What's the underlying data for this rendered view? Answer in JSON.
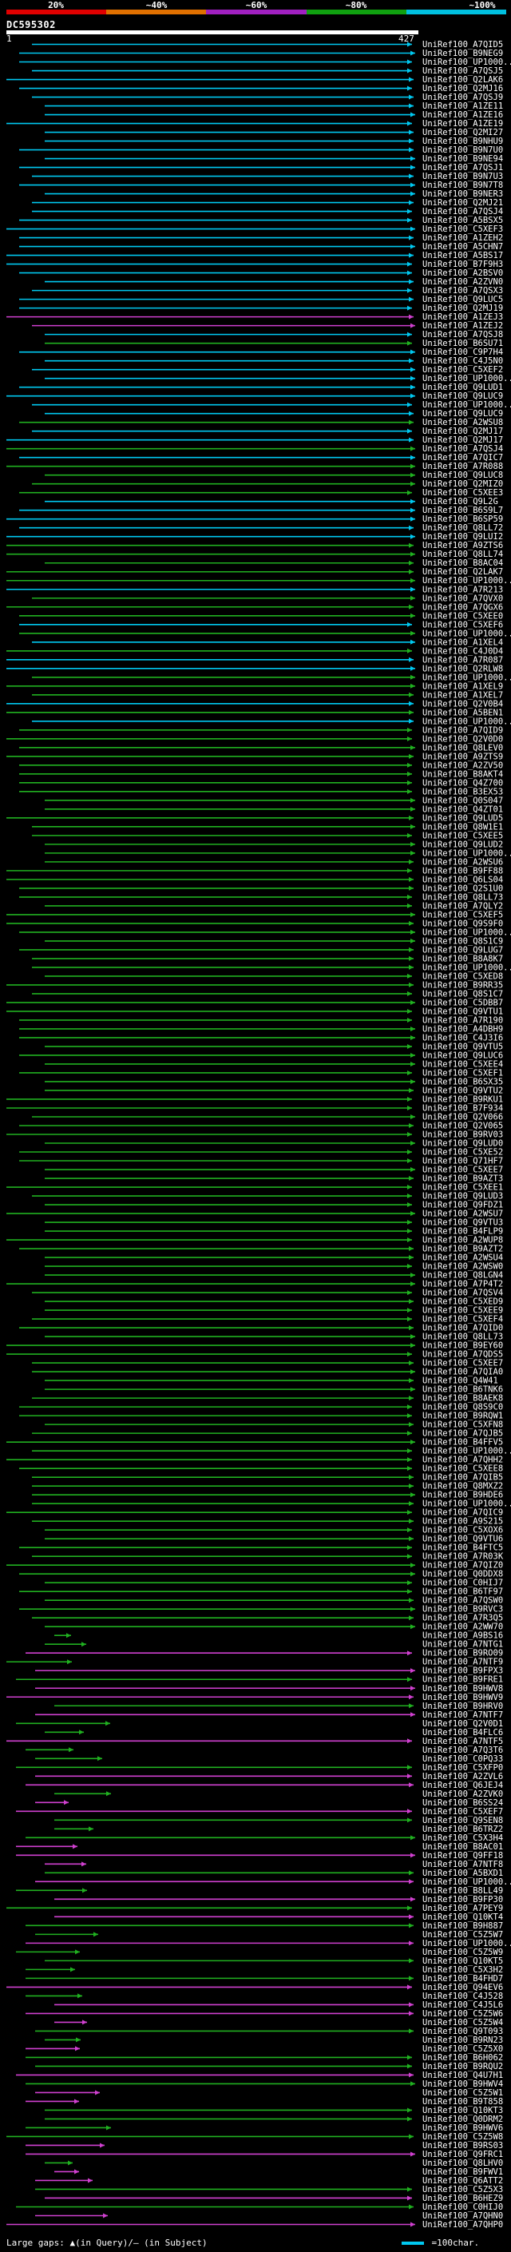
{
  "query": {
    "id": "DC595302",
    "start": "1",
    "end": "427"
  },
  "legend": {
    "ticks": [
      "20%",
      "~40%",
      "~60%",
      "~80%",
      "~100%"
    ],
    "colors": [
      "#e00000",
      "#e07000",
      "#a020c0",
      "#10a010",
      "#00c0e0"
    ]
  },
  "colors": {
    "cyan": "#00c8f0",
    "green": "#20b020",
    "magenta": "#d040d0",
    "label": "#ffffff"
  },
  "hits": [
    "UniRef100_A7QID5",
    "UniRef100_B9NEG9",
    "UniRef100_UP1000...",
    "UniRef100_A7QSJ5",
    "UniRef100_Q2LAK6",
    "UniRef100_Q2MJ16",
    "UniRef100_A7QSJ9",
    "UniRef100_A1ZE11",
    "UniRef100_A1ZE16",
    "UniRef100_A1ZE19",
    "UniRef100_Q2MI27",
    "UniRef100_B9NHU9",
    "UniRef100_B9N7U0",
    "UniRef100_B9NE94",
    "UniRef100_A7QSJ1",
    "UniRef100_B9N7U3",
    "UniRef100_B9N7T8",
    "UniRef100_B9NER3",
    "UniRef100_Q2MJ21",
    "UniRef100_A7QSJ4",
    "UniRef100_A5BSX5",
    "UniRef100_C5XEF3",
    "UniRef100_A1ZEH2",
    "UniRef100_A5CHN7",
    "UniRef100_A5BS17",
    "UniRef100_B7F9H3",
    "UniRef100_A2BSV0",
    "UniRef100_A2ZVN0",
    "UniRef100_A7QSX3",
    "UniRef100_Q9LUC5",
    "UniRef100_Q2MJ19",
    "UniRef100_A1ZEJ3",
    "UniRef100_A1ZEJ2",
    "UniRef100_A7QSJ8",
    "UniRef100_B6SU71",
    "UniRef100_C9P7H4",
    "UniRef100_C4J5N0",
    "UniRef100_C5XEF2",
    "UniRef100_UP1000...",
    "UniRef100_Q9LUD1",
    "UniRef100_Q9LUC9",
    "UniRef100_UP1000...",
    "UniRef100_Q9LUC9",
    "UniRef100_A2WSU8",
    "UniRef100_Q2MJ17",
    "UniRef100_Q2MJ17",
    "UniRef100_A7QSJ4",
    "UniRef100_A7QIC7",
    "UniRef100_A7R088",
    "UniRef100_Q9LUC8",
    "UniRef100_Q2MIZ0",
    "UniRef100_C5XEE3",
    "UniRef100_Q9L2G",
    "UniRef100_B6S9L7",
    "UniRef100_B6SP59",
    "UniRef100_Q8LL72",
    "UniRef100_Q9LUI2",
    "UniRef100_A9ZTS6",
    "UniRef100_Q8LL74",
    "UniRef100_B8AC04",
    "UniRef100_Q2LAK7",
    "UniRef100_UP1000...",
    "UniRef100_A7R213",
    "UniRef100_A7QVX0",
    "UniRef100_A7QGX6",
    "UniRef100_C5XEE0",
    "UniRef100_C5XEF6",
    "UniRef100_UP1000...",
    "UniRef100_A1XEL4",
    "UniRef100_C4J0D4",
    "UniRef100_A7R087",
    "UniRef100_Q2RLW8",
    "UniRef100_UP1000...",
    "UniRef100_A1XEL9",
    "UniRef100_A1XEL7",
    "UniRef100_Q2V0B4",
    "UniRef100_A5BEN1",
    "UniRef100_UP1000...",
    "UniRef100_A7QID9",
    "UniRef100_Q2V0D0",
    "UniRef100_Q8LEV0",
    "UniRef100_A9ZTS9",
    "UniRef100_A2ZV50",
    "UniRef100_B8AKT4",
    "UniRef100_Q4Z700",
    "UniRef100_B3EX53",
    "UniRef100_Q0S047",
    "UniRef100_Q4ZT01",
    "UniRef100_Q9LUD5",
    "UniRef100_Q8W1E1",
    "UniRef100_C5XEE5",
    "UniRef100_Q9LUD2",
    "UniRef100_UP1000...",
    "UniRef100_A2WSU6",
    "UniRef100_B9FF88",
    "UniRef100_Q6LS04",
    "UniRef100_Q2S1U0",
    "UniRef100_Q8LL73",
    "UniRef100_A7QLY2",
    "UniRef100_C5XEF5",
    "UniRef100_Q9S9F0",
    "UniRef100_UP1000...",
    "UniRef100_Q8S1C9",
    "UniRef100_Q9LUG7",
    "UniRef100_B8A8K7",
    "UniRef100_UP1000...",
    "UniRef100_C5XED8",
    "UniRef100_B9RR35",
    "UniRef100_Q8S1C7",
    "UniRef100_C5DBB7",
    "UniRef100_Q9VTU1",
    "UniRef100_A7R190",
    "UniRef100_A4DBH9",
    "UniRef100_C4J3I6",
    "UniRef100_Q9VTU5",
    "UniRef100_Q9LUC6",
    "UniRef100_C5XEE4",
    "UniRef100_C5XEF1",
    "UniRef100_B6SX35",
    "UniRef100_Q9VTU2",
    "UniRef100_B9RKU1",
    "UniRef100_B7F934",
    "UniRef100_Q2V066",
    "UniRef100_Q2V065",
    "UniRef100_B9RV03",
    "UniRef100_Q9LUD0",
    "UniRef100_C5XE52",
    "UniRef100_Q71HF7",
    "UniRef100_C5XEE7",
    "UniRef100_B9AZT3",
    "UniRef100_C5XEE1",
    "UniRef100_Q9LUD3",
    "UniRef100_Q9FDZ1",
    "UniRef100_A2WSU7",
    "UniRef100_Q9VTU3",
    "UniRef100_B4FLP9",
    "UniRef100_A2WUP8",
    "UniRef100_B9AZT2",
    "UniRef100_A2WSU4",
    "UniRef100_A2WSW0",
    "UniRef100_Q8LGN4",
    "UniRef100_A7P4T2",
    "UniRef100_A7QSV4",
    "UniRef100_C5XED9",
    "UniRef100_C5XEE9",
    "UniRef100_C5XEF4",
    "UniRef100_A7QID0",
    "UniRef100_Q8LL73",
    "UniRef100_B9EY60",
    "UniRef100_A7QDS5",
    "UniRef100_C5XEE7",
    "UniRef100_A7QIA0",
    "UniRef100_Q4W41",
    "UniRef100_B6TNK6",
    "UniRef100_B8AEK8",
    "UniRef100_Q8S9C0",
    "UniRef100_B9RQW1",
    "UniRef100_C5XFN8",
    "UniRef100_A7QJB5",
    "UniRef100_B4FFV5",
    "UniRef100_UP1000...",
    "UniRef100_A7QHH2",
    "UniRef100_C5XEE8",
    "UniRef100_A7QIB5",
    "UniRef100_Q8MXZ2",
    "UniRef100_B9HDE6",
    "UniRef100_UP1000...",
    "UniRef100_A7QIC9",
    "UniRef100_A9S215",
    "UniRef100_C5XOX6",
    "UniRef100_Q9VTU6",
    "UniRef100_B4FTC5",
    "UniRef100_A7R03K",
    "UniRef100_A7QIZ0",
    "UniRef100_Q0DDX8",
    "UniRef100_C0HIJ7",
    "UniRef100_B6TF97",
    "UniRef100_A7QSW0",
    "UniRef100_B9RVC3",
    "UniRef100_A7R3Q5",
    "UniRef100_A2WW70",
    "UniRef100_A9BS16",
    "UniRef100_A7NTG1",
    "UniRef100_B9RO09",
    "UniRef100_A7NTF9",
    "UniRef100_B9FPX3",
    "UniRef100_B9FRE1",
    "UniRef100_B9HWV8",
    "UniRef100_B9HWV9",
    "UniRef100_B9HRV0",
    "UniRef100_A7NTF7",
    "UniRef100_Q2V0D1",
    "UniRef100_B4FLC6",
    "UniRef100_A7NTF5",
    "UniRef100_A7Q3T6",
    "UniRef100_C0PQ33",
    "UniRef100_C5XFP0",
    "UniRef100_A2ZVL6",
    "UniRef100_Q6JEJ4",
    "UniRef100_A2ZVK0",
    "UniRef100_B6SS24",
    "UniRef100_C5XEF7",
    "UniRef100_Q9SEN8",
    "UniRef100_B6TRZ2",
    "UniRef100_C5X3H4",
    "UniRef100_B8AC01",
    "UniRef100_Q9FF18",
    "UniRef100_A7NTF8",
    "UniRef100_A5BXD1",
    "UniRef100_UP1000...",
    "UniRef100_B8LL49",
    "UniRef100_B9FP30",
    "UniRef100_A7PEY9",
    "UniRef100_Q10KT4",
    "UniRef100_B9H887",
    "UniRef100_C5Z5W7",
    "UniRef100_UP1000...",
    "UniRef100_C5Z5W9",
    "UniRef100_Q10KT5",
    "UniRef100_C5X3H2",
    "UniRef100_B4FHD7",
    "UniRef100_Q94EV6",
    "UniRef100_C4J528",
    "UniRef100_C4J5L6",
    "UniRef100_C5Z5W6",
    "UniRef100_C5Z5W4",
    "UniRef100_Q9T093",
    "UniRef100_B9RN23",
    "UniRef100_C5Z5X0",
    "UniRef100_B6H062",
    "UniRef100_B9RQU2",
    "UniRef100_Q4U7H1",
    "UniRef100_B9HWV4",
    "UniRef100_C5Z5W1",
    "UniRef100_B9T858",
    "UniRef100_Q10KT3",
    "UniRef100_Q0DRM2",
    "UniRef100_B9HWV6",
    "UniRef100_C5Z5W8",
    "UniRef100_B9RS03",
    "UniRef100_Q9FRC1",
    "UniRef100_Q8LHV0",
    "UniRef100_B9FWV1",
    "UniRef100_Q6ATT2",
    "UniRef100_C5Z5X3",
    "UniRef100_B6HEZ9",
    "UniRef100_C0HIJ0",
    "UniRef100_A7QHN0",
    "UniRef100_A7QHP0"
  ],
  "footer": {
    "large_gaps": "Large gaps: ▲(in Query)/— (in Subject)",
    "scale": "=100char."
  }
}
